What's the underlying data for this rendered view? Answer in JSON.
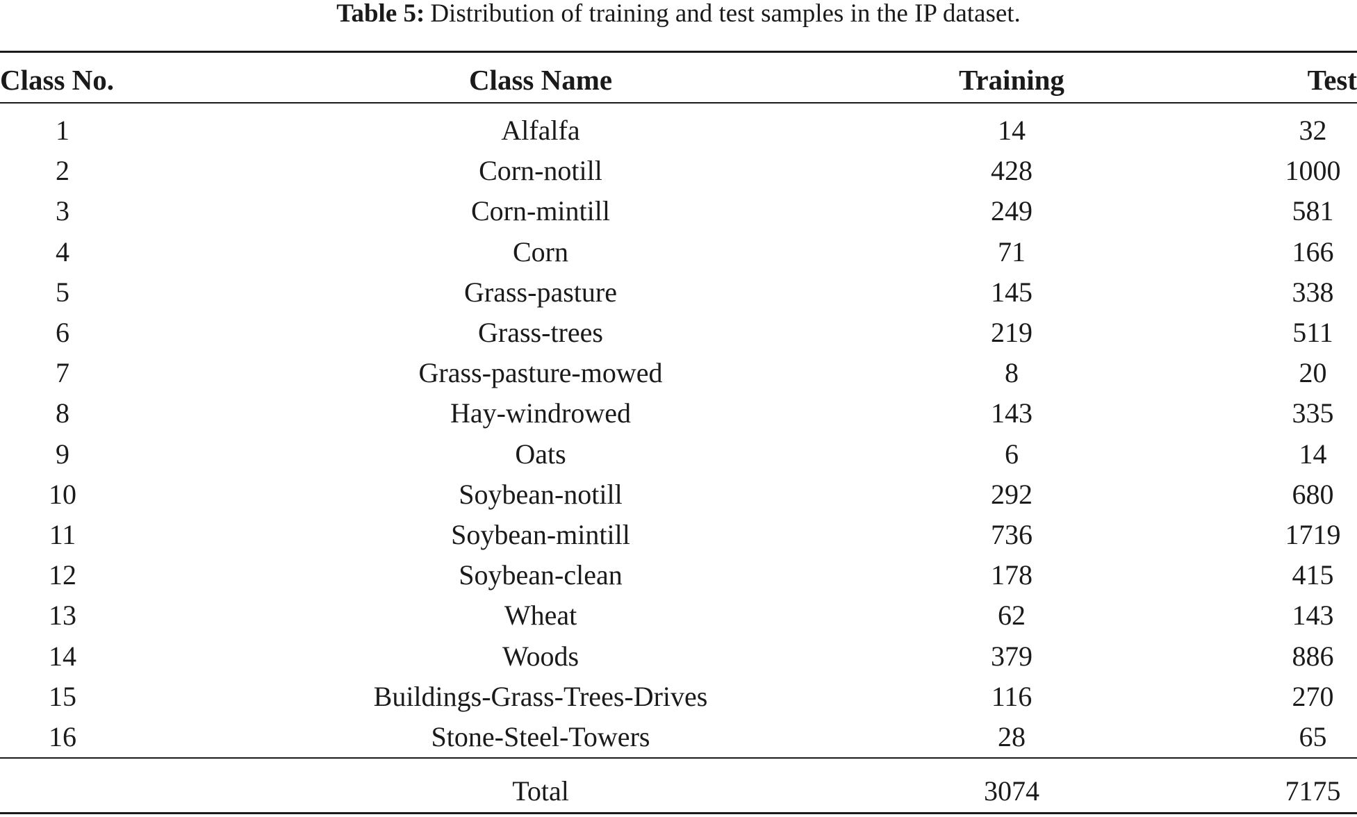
{
  "caption": {
    "label": "Table 5:",
    "text": "Distribution of training and test samples in the IP dataset."
  },
  "table": {
    "headers": [
      "Class No.",
      "Class Name",
      "Training",
      "Test"
    ],
    "rows": [
      [
        "1",
        "Alfalfa",
        "14",
        "32"
      ],
      [
        "2",
        "Corn-notill",
        "428",
        "1000"
      ],
      [
        "3",
        "Corn-mintill",
        "249",
        "581"
      ],
      [
        "4",
        "Corn",
        "71",
        "166"
      ],
      [
        "5",
        "Grass-pasture",
        "145",
        "338"
      ],
      [
        "6",
        "Grass-trees",
        "219",
        "511"
      ],
      [
        "7",
        "Grass-pasture-mowed",
        "8",
        "20"
      ],
      [
        "8",
        "Hay-windrowed",
        "143",
        "335"
      ],
      [
        "9",
        "Oats",
        "6",
        "14"
      ],
      [
        "10",
        "Soybean-notill",
        "292",
        "680"
      ],
      [
        "11",
        "Soybean-mintill",
        "736",
        "1719"
      ],
      [
        "12",
        "Soybean-clean",
        "178",
        "415"
      ],
      [
        "13",
        "Wheat",
        "62",
        "143"
      ],
      [
        "14",
        "Woods",
        "379",
        "886"
      ],
      [
        "15",
        "Buildings-Grass-Trees-Drives",
        "116",
        "270"
      ],
      [
        "16",
        "Stone-Steel-Towers",
        "28",
        "65"
      ]
    ],
    "total": {
      "label": "Total",
      "training": "3074",
      "test": "7175"
    }
  }
}
